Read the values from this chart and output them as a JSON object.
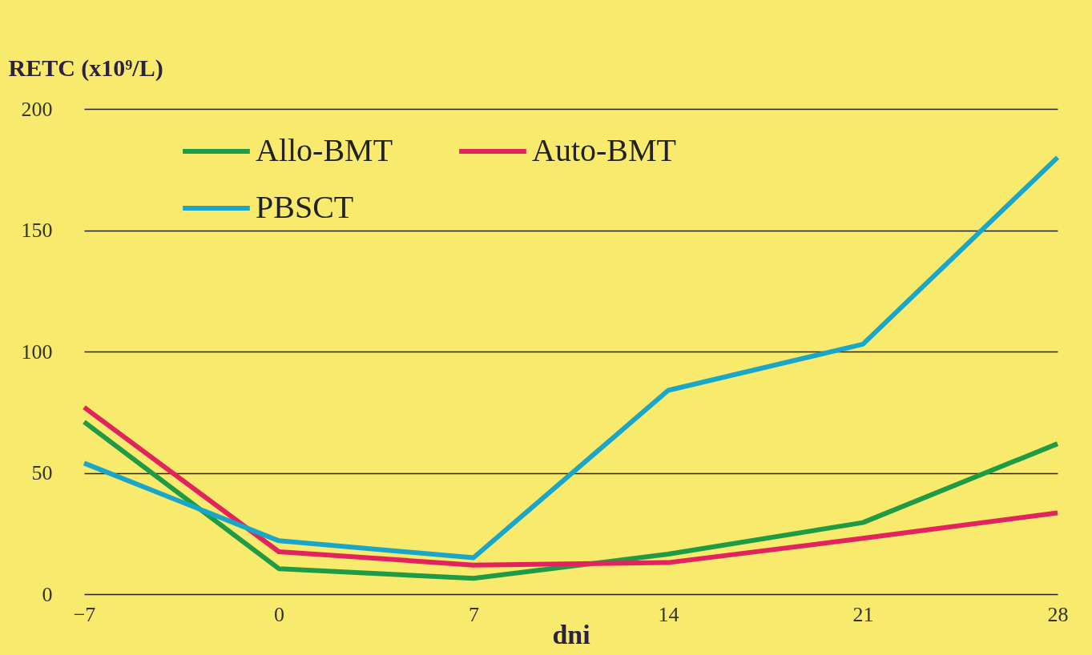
{
  "chart_data": {
    "type": "line",
    "xlabel": "dni",
    "ylabel": "RETC (x10⁹/L)",
    "x": [
      -7,
      0,
      7,
      14,
      21,
      28
    ],
    "series": [
      {
        "name": "Allo-BMT",
        "color": "#1f9a45",
        "values": [
          71,
          10.5,
          6.5,
          16.5,
          29.5,
          62
        ]
      },
      {
        "name": "Auto-BMT",
        "color": "#e2245e",
        "values": [
          77,
          17.5,
          12,
          13,
          23,
          33.5
        ]
      },
      {
        "name": "PBSCT",
        "color": "#1aa6c9",
        "values": [
          54,
          22,
          15,
          84,
          103,
          180
        ]
      }
    ],
    "xlim": [
      -7,
      28
    ],
    "xticks": [
      -7,
      0,
      7,
      14,
      21,
      28
    ],
    "ylim": [
      0,
      200
    ],
    "yticks": [
      0,
      50,
      100,
      150,
      200
    ],
    "grid": "y",
    "legend": "top left",
    "marker": "none",
    "line_style": "solid"
  }
}
